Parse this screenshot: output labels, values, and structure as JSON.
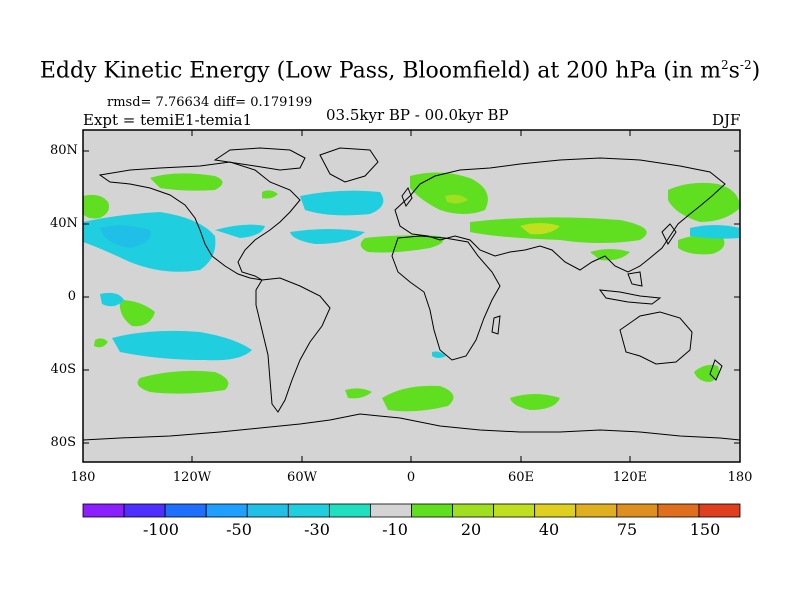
{
  "title": {
    "main": "Eddy Kinetic Energy (Low Pass, Bloomfield) at 200 hPa (in m",
    "sup1": "2",
    "mid": "s",
    "sup2": "-2",
    "end": ")"
  },
  "stats": "rmsd= 7.76634 diff= 0.179199",
  "expt": "Expt = temiE1-temia1",
  "period": "03.5kyr BP - 00.0kyr BP",
  "season": "DJF",
  "map": {
    "lat_labels": [
      "80N",
      "40N",
      "0",
      "40S",
      "80S"
    ],
    "lon_labels": [
      "180",
      "120W",
      "60W",
      "0",
      "60E",
      "120E",
      "180"
    ],
    "background_color": "#d4d4d4"
  },
  "colorbar": {
    "colors": [
      "#8c1fff",
      "#4f2fff",
      "#1f6fff",
      "#1f9fff",
      "#1fbfe8",
      "#1fcfdf",
      "#1fdfbf",
      "#d4d4d4",
      "#5fdf1f",
      "#9fdf1f",
      "#bfdf1f",
      "#dfcf1f",
      "#dfaf1f",
      "#df8f1f",
      "#df6f1f",
      "#df3f1f"
    ],
    "labels": [
      "-100",
      "-50",
      "-30",
      "-10",
      "20",
      "40",
      "75",
      "150"
    ]
  }
}
